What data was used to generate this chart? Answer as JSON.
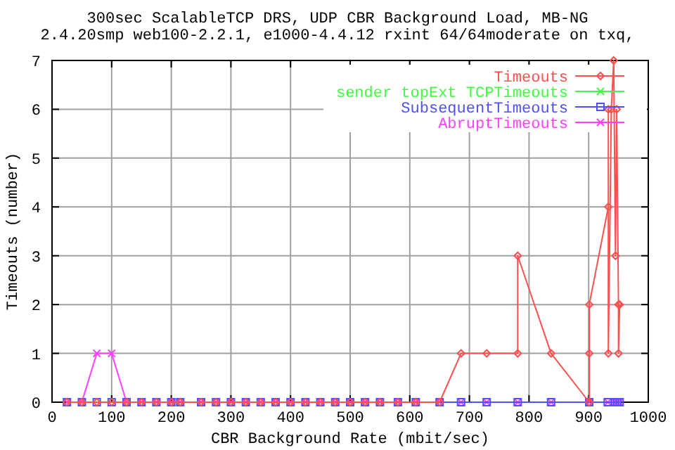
{
  "chart_data": {
    "type": "line",
    "title": "300sec ScalableTCP DRS, UDP CBR Background Load, MB-NG",
    "subtitle": "2.4.20smp web100-2.2.1, e1000-4.4.12 rxint 64/64moderate on txq,",
    "xlabel": "CBR Background Rate (mbit/sec)",
    "ylabel": "Timeouts (number)",
    "xlim": [
      0,
      1000
    ],
    "ylim": [
      0,
      7
    ],
    "xticks": [
      0,
      100,
      200,
      300,
      400,
      500,
      600,
      700,
      800,
      900,
      1000
    ],
    "yticks": [
      0,
      1,
      2,
      3,
      4,
      5,
      6,
      7
    ],
    "grid": true,
    "legend": "top right",
    "line_style": "solid",
    "x": [
      25,
      50,
      75,
      100,
      125,
      150,
      175,
      200,
      215,
      250,
      275,
      300,
      325,
      350,
      375,
      400,
      425,
      450,
      475,
      500,
      525,
      550,
      580,
      610,
      650,
      686,
      729,
      781,
      837,
      901,
      932,
      944,
      948,
      952
    ],
    "series": [
      {
        "name": "Timeouts",
        "color": "#ff5050",
        "marker": "diamond",
        "x": [
          25,
          50,
          75,
          100,
          125,
          150,
          175,
          200,
          215,
          250,
          275,
          300,
          325,
          350,
          375,
          400,
          425,
          450,
          475,
          500,
          525,
          550,
          580,
          610,
          650,
          686,
          729,
          781,
          781,
          837,
          901,
          901,
          901,
          933,
          933,
          933,
          938,
          942,
          945,
          947,
          950,
          950,
          952
        ],
        "values": [
          0,
          0,
          0,
          0,
          0,
          0,
          0,
          0,
          0,
          0,
          0,
          0,
          0,
          0,
          0,
          0,
          0,
          0,
          0,
          0,
          0,
          0,
          0,
          0,
          0,
          1,
          1,
          1,
          3,
          1,
          0,
          1,
          2,
          4,
          6,
          1,
          6,
          7,
          3,
          6,
          2,
          1,
          2
        ]
      },
      {
        "name": "sender topExt TCPTimeouts",
        "color": "#40ff40",
        "marker": "cross",
        "values": [
          null,
          null,
          null,
          null,
          null,
          null,
          null,
          null,
          null,
          null,
          null,
          null,
          null,
          null,
          null,
          null,
          null,
          null,
          null,
          null,
          null,
          null,
          null,
          null,
          null,
          null,
          null,
          null,
          null,
          null,
          null,
          null,
          null,
          null
        ]
      },
      {
        "name": "SubsequentTimeouts",
        "color": "#5050ff",
        "marker": "square",
        "values": [
          0,
          0,
          0,
          0,
          0,
          0,
          0,
          0,
          0,
          0,
          0,
          0,
          0,
          0,
          0,
          0,
          0,
          0,
          0,
          0,
          0,
          0,
          0,
          0,
          0,
          0,
          0,
          0,
          0,
          0,
          0,
          0,
          0,
          0
        ]
      },
      {
        "name": "AbruptTimeouts",
        "color": "#ff40ff",
        "marker": "cross",
        "values": [
          0,
          0,
          1,
          1,
          0,
          0,
          0,
          0,
          0,
          0,
          0,
          0,
          0,
          0,
          0,
          0,
          0,
          0,
          0,
          0,
          0,
          0,
          0,
          0,
          0,
          0,
          0,
          0,
          0,
          0,
          0,
          0,
          0,
          0
        ]
      }
    ]
  }
}
